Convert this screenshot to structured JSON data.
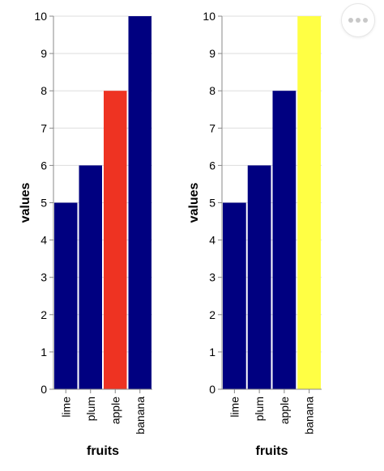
{
  "chart_data": [
    {
      "type": "bar",
      "categories": [
        "lime",
        "plum",
        "apple",
        "banana"
      ],
      "values": [
        5,
        6,
        8,
        10
      ],
      "colors": [
        "#000080",
        "#000080",
        "#ee3322",
        "#000080"
      ],
      "xlabel": "fruits",
      "ylabel": "values",
      "ylim": [
        0,
        10
      ],
      "yticks": [
        "0",
        "1",
        "2",
        "3",
        "4",
        "5",
        "6",
        "7",
        "8",
        "9",
        "10"
      ],
      "grid": true
    },
    {
      "type": "bar",
      "categories": [
        "lime",
        "plum",
        "apple",
        "banana"
      ],
      "values": [
        5,
        6,
        8,
        10
      ],
      "colors": [
        "#000080",
        "#000080",
        "#000080",
        "#ffff44"
      ],
      "xlabel": "fruits",
      "ylabel": "values",
      "ylim": [
        0,
        10
      ],
      "yticks": [
        "0",
        "1",
        "2",
        "3",
        "4",
        "5",
        "6",
        "7",
        "8",
        "9",
        "10"
      ],
      "grid": true
    }
  ],
  "actions_menu": {
    "icon": "more-horizontal-icon"
  }
}
